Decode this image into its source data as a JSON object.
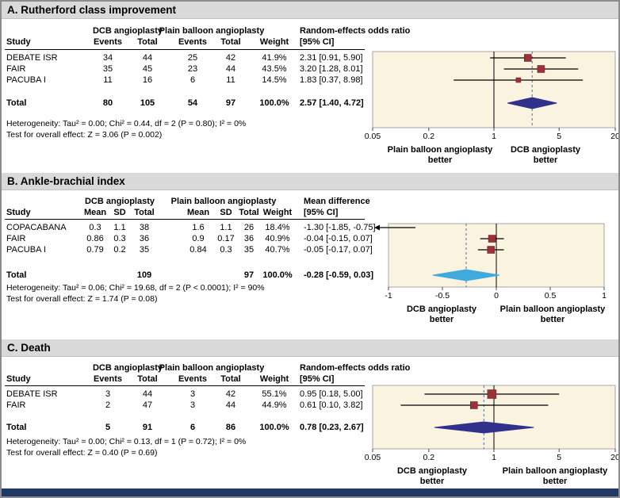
{
  "colors": {
    "panel_band": "#d9d9d9",
    "plot_background": "#faf3e0",
    "plot_border": "#a6a6a6",
    "study_marker": "#9d3039",
    "or_diamond": "#31318c",
    "md_diamond": "#41aadc",
    "pooled_line": "#4d6fa8",
    "bottom_bar": "#1f3864"
  },
  "figure": {
    "panels": [
      {
        "id": "A",
        "title": "A. Rutherford class improvement",
        "table": {
          "study_header": "Study",
          "groups": [
            "DCB angioplasty",
            "Plain balloon angioplasty"
          ],
          "effect_header": "Random-effects odds ratio",
          "effect_subheader": "[95% CI]",
          "value_headers": [
            "Events",
            "Total",
            "Events",
            "Total",
            "Weight"
          ],
          "rows": [
            {
              "study": "DEBATE ISR",
              "cells": [
                "34",
                "44",
                "25",
                "42",
                "41.9%"
              ],
              "effect": "2.31 [0.91, 5.90]"
            },
            {
              "study": "FAIR",
              "cells": [
                "35",
                "45",
                "23",
                "44",
                "43.5%"
              ],
              "effect": "3.20 [1.28, 8.01]"
            },
            {
              "study": "PACUBA I",
              "cells": [
                "11",
                "16",
                "6",
                "11",
                "14.5%"
              ],
              "effect": "1.83 [0.37, 8.98]"
            }
          ],
          "total": {
            "study": "Total",
            "cells": [
              "80",
              "105",
              "54",
              "97",
              "100.0%"
            ],
            "effect": "2.57 [1.40, 4.72]"
          },
          "heterogeneity": "Heterogeneity: Tau² = 0.00; Chi² = 0.44, df = 2 (P = 0.80); I² = 0%",
          "overall_test": "Test for overall effect: Z = 3.06 (P = 0.002)"
        }
      },
      {
        "id": "B",
        "title": "B. Ankle-brachial index",
        "table": {
          "study_header": "Study",
          "groups": [
            "DCB angioplasty",
            "Plain balloon angioplasty"
          ],
          "effect_header": "Mean difference",
          "effect_subheader": "[95% CI]",
          "value_headers": [
            "Mean",
            "SD",
            "Total",
            "Mean",
            "SD",
            "Total",
            "Weight"
          ],
          "rows": [
            {
              "study": "COPACABANA",
              "cells": [
                "0.3",
                "1.1",
                "38",
                "1.6",
                "1.1",
                "26",
                "18.4%"
              ],
              "effect": "-1.30 [-1.85, -0.75]"
            },
            {
              "study": "FAIR",
              "cells": [
                "0.86",
                "0.3",
                "36",
                "0.9",
                "0.17",
                "36",
                "40.9%"
              ],
              "effect": "-0.04 [-0.15, 0.07]"
            },
            {
              "study": "PACUBA I",
              "cells": [
                "0.79",
                "0.2",
                "35",
                "0.84",
                "0.3",
                "35",
                "40.7%"
              ],
              "effect": "-0.05 [-0.17, 0.07]"
            }
          ],
          "total": {
            "study": "Total",
            "cells": [
              "",
              "",
              "109",
              "",
              "",
              "97",
              "100.0%"
            ],
            "effect": "-0.28 [-0.59, 0.03]"
          },
          "heterogeneity": "Heterogeneity: Tau² = 0.06; Chi² = 19.68, df = 2 (P < 0.0001); I² = 90%",
          "overall_test": "Test for overall effect: Z = 1.74 (P = 0.08)"
        }
      },
      {
        "id": "C",
        "title": "C. Death",
        "table": {
          "study_header": "Study",
          "groups": [
            "DCB angioplasty",
            "Plain balloon angioplasty"
          ],
          "effect_header": "Random-effects odds ratio",
          "effect_subheader": "[95% CI]",
          "value_headers": [
            "Events",
            "Total",
            "Events",
            "Total",
            "Weight"
          ],
          "rows": [
            {
              "study": "DEBATE ISR",
              "cells": [
                "3",
                "44",
                "3",
                "42",
                "55.1%"
              ],
              "effect": "0.95 [0.18, 5.00]"
            },
            {
              "study": "FAIR",
              "cells": [
                "2",
                "47",
                "3",
                "44",
                "44.9%"
              ],
              "effect": "0.61 [0.10, 3.82]"
            }
          ],
          "total": {
            "study": "Total",
            "cells": [
              "5",
              "91",
              "6",
              "86",
              "100.0%"
            ],
            "effect": "0.78 [0.23, 2.67]"
          },
          "heterogeneity": "Heterogeneity: Tau² = 0.00; Chi² = 0.13, df = 1 (P = 0.72); I² = 0%",
          "overall_test": "Test for overall effect: Z = 0.40 (P = 0.69)"
        }
      }
    ]
  },
  "chart_data": [
    {
      "type": "forest",
      "panel": "A",
      "title": "Rutherford class improvement",
      "effect_measure": "Random-effects odds ratio [95% CI]",
      "scale": "log",
      "xmin": 0.05,
      "xmax": 20,
      "tick_values": [
        0.05,
        0.2,
        1,
        5,
        20
      ],
      "tick_labels": [
        "0.05",
        "0.2",
        "1",
        "5",
        "20"
      ],
      "null_value": 1,
      "studies": [
        {
          "name": "DEBATE ISR",
          "est": 2.31,
          "lo": 0.91,
          "hi": 5.9,
          "weight": 41.9
        },
        {
          "name": "FAIR",
          "est": 3.2,
          "lo": 1.28,
          "hi": 8.01,
          "weight": 43.5
        },
        {
          "name": "PACUBA I",
          "est": 1.83,
          "lo": 0.37,
          "hi": 8.98,
          "weight": 14.5
        }
      ],
      "pooled": {
        "est": 2.57,
        "lo": 1.4,
        "hi": 4.72
      },
      "left_label": [
        "Plain balloon angioplasty",
        "better"
      ],
      "right_label": [
        "DCB angioplasty",
        "better"
      ],
      "marker_color": "#9d3039",
      "diamond_color": "#31318c"
    },
    {
      "type": "forest",
      "panel": "B",
      "title": "Ankle-brachial index",
      "effect_measure": "Mean difference [95% CI]",
      "scale": "linear",
      "xmin": -1,
      "xmax": 1,
      "tick_values": [
        -1,
        -0.5,
        0,
        0.5,
        1
      ],
      "tick_labels": [
        "-1",
        "-0.5",
        "0",
        "0.5",
        "1"
      ],
      "null_value": 0,
      "studies": [
        {
          "name": "COPACABANA",
          "est": -1.3,
          "lo": -1.85,
          "hi": -0.75,
          "weight": 18.4
        },
        {
          "name": "FAIR",
          "est": -0.04,
          "lo": -0.15,
          "hi": 0.07,
          "weight": 40.9
        },
        {
          "name": "PACUBA I",
          "est": -0.05,
          "lo": -0.17,
          "hi": 0.07,
          "weight": 40.7
        }
      ],
      "pooled": {
        "est": -0.28,
        "lo": -0.59,
        "hi": 0.03
      },
      "left_label": [
        "DCB angioplasty",
        "better"
      ],
      "right_label": [
        "Plain balloon angioplasty",
        "better"
      ],
      "marker_color": "#9d3039",
      "diamond_color": "#41aadc"
    },
    {
      "type": "forest",
      "panel": "C",
      "title": "Death",
      "effect_measure": "Random-effects odds ratio [95% CI]",
      "scale": "log",
      "xmin": 0.05,
      "xmax": 20,
      "tick_values": [
        0.05,
        0.2,
        1,
        5,
        20
      ],
      "tick_labels": [
        "0.05",
        "0.2",
        "1",
        "5",
        "20"
      ],
      "null_value": 1,
      "studies": [
        {
          "name": "DEBATE ISR",
          "est": 0.95,
          "lo": 0.18,
          "hi": 5.0,
          "weight": 55.1
        },
        {
          "name": "FAIR",
          "est": 0.61,
          "lo": 0.1,
          "hi": 3.82,
          "weight": 44.9
        }
      ],
      "pooled": {
        "est": 0.78,
        "lo": 0.23,
        "hi": 2.67
      },
      "left_label": [
        "DCB angioplasty",
        "better"
      ],
      "right_label": [
        "Plain balloon angioplasty",
        "better"
      ],
      "marker_color": "#9d3039",
      "diamond_color": "#31318c"
    }
  ]
}
